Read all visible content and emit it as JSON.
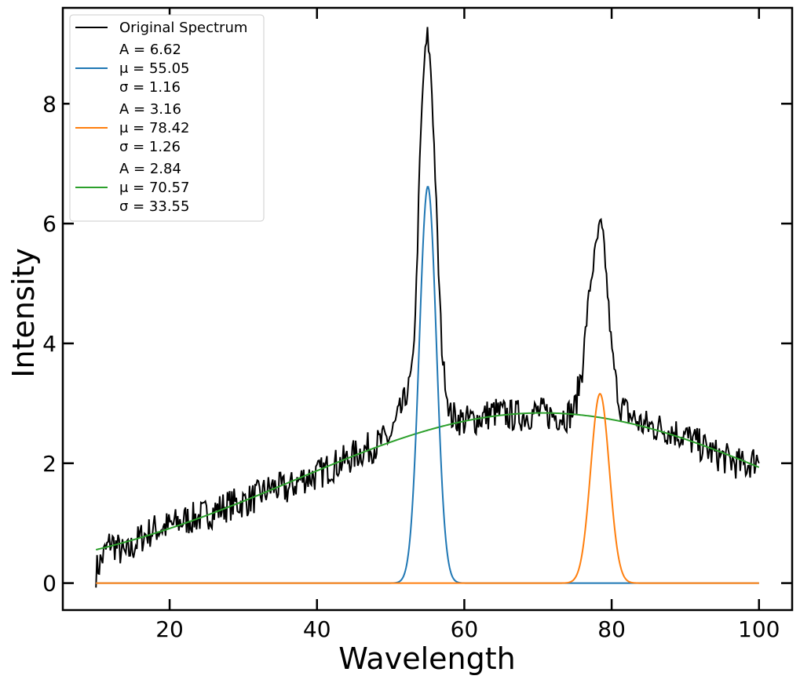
{
  "chart_data": {
    "type": "line",
    "title": "",
    "xlabel": "Wavelength",
    "ylabel": "Intensity",
    "xlim": [
      5.5,
      104.5
    ],
    "ylim": [
      -0.45,
      9.6
    ],
    "xticks": [
      20,
      40,
      60,
      80,
      100
    ],
    "yticks": [
      0,
      2,
      4,
      6,
      8
    ],
    "grid": false,
    "legend_position": "top-left",
    "x_range": [
      10,
      100
    ],
    "original_spectrum": {
      "name": "Original Spectrum",
      "color": "#000000",
      "x": [
        10,
        12,
        14,
        16,
        18,
        20,
        22,
        24,
        26,
        28,
        30,
        32,
        34,
        36,
        38,
        40,
        42,
        44,
        46,
        48,
        50,
        51,
        52,
        53,
        53.5,
        54,
        54.5,
        55,
        55.5,
        56,
        56.5,
        57,
        58,
        60,
        62,
        64,
        66,
        68,
        70,
        72,
        74,
        75,
        76,
        77,
        78,
        78.5,
        79,
        80,
        81,
        82,
        84,
        86,
        88,
        90,
        92,
        94,
        96,
        98,
        100
      ],
      "y": [
        0.2,
        0.7,
        0.45,
        0.75,
        0.9,
        0.95,
        1.05,
        1.1,
        1.2,
        1.3,
        1.35,
        1.45,
        1.6,
        1.55,
        1.75,
        1.8,
        1.95,
        2.05,
        2.2,
        2.3,
        2.45,
        2.75,
        3.05,
        3.6,
        5.0,
        7.2,
        8.6,
        9.15,
        8.5,
        7.0,
        5.2,
        3.8,
        2.8,
        2.7,
        2.75,
        2.85,
        2.8,
        2.8,
        2.85,
        2.8,
        2.8,
        2.9,
        3.6,
        4.9,
        5.7,
        6.0,
        5.6,
        3.9,
        3.0,
        2.85,
        2.65,
        2.6,
        2.55,
        2.45,
        2.3,
        2.15,
        2.05,
        1.95,
        2.1
      ]
    },
    "series": [
      {
        "name": "Original Spectrum",
        "color": "#000000"
      },
      {
        "color": "#1f77b4",
        "A": 6.62,
        "mu": 55.05,
        "sigma": 1.16,
        "label_lines": [
          "A = 6.62",
          "μ = 55.05",
          "σ = 1.16"
        ]
      },
      {
        "color": "#ff7f0e",
        "A": 3.16,
        "mu": 78.42,
        "sigma": 1.26,
        "label_lines": [
          "A = 3.16",
          "μ = 78.42",
          "σ = 1.26"
        ]
      },
      {
        "color": "#2ca02c",
        "A": 2.84,
        "mu": 70.57,
        "sigma": 33.55,
        "label_lines": [
          "A = 2.84",
          "μ = 70.57",
          "σ = 33.55"
        ]
      }
    ]
  }
}
